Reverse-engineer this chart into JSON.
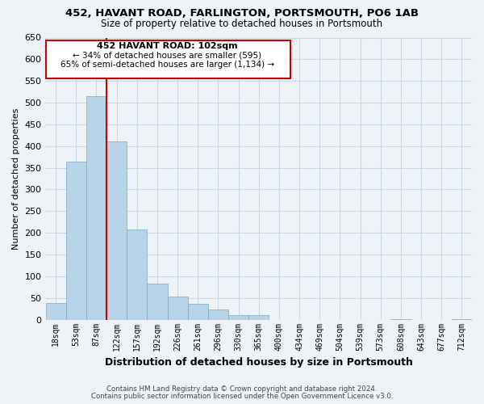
{
  "title1": "452, HAVANT ROAD, FARLINGTON, PORTSMOUTH, PO6 1AB",
  "title2": "Size of property relative to detached houses in Portsmouth",
  "xlabel": "Distribution of detached houses by size in Portsmouth",
  "ylabel": "Number of detached properties",
  "bar_labels": [
    "18sqm",
    "53sqm",
    "87sqm",
    "122sqm",
    "157sqm",
    "192sqm",
    "226sqm",
    "261sqm",
    "296sqm",
    "330sqm",
    "365sqm",
    "400sqm",
    "434sqm",
    "469sqm",
    "504sqm",
    "539sqm",
    "573sqm",
    "608sqm",
    "643sqm",
    "677sqm",
    "712sqm"
  ],
  "bar_values": [
    38,
    365,
    515,
    410,
    207,
    83,
    53,
    37,
    24,
    10,
    10,
    0,
    0,
    0,
    0,
    0,
    0,
    2,
    0,
    0,
    2
  ],
  "bar_color": "#b8d4e8",
  "bar_edge_color": "#7aaac8",
  "grid_color": "#c8d8e8",
  "background_color": "#eef3f8",
  "property_line_color": "#cc0000",
  "annotation_title": "452 HAVANT ROAD: 102sqm",
  "annotation_line1": "← 34% of detached houses are smaller (595)",
  "annotation_line2": "65% of semi-detached houses are larger (1,134) →",
  "annotation_box_color": "#ffffff",
  "annotation_box_edge": "#cc0000",
  "ylim": [
    0,
    650
  ],
  "yticks": [
    0,
    50,
    100,
    150,
    200,
    250,
    300,
    350,
    400,
    450,
    500,
    550,
    600,
    650
  ],
  "footer1": "Contains HM Land Registry data © Crown copyright and database right 2024.",
  "footer2": "Contains public sector information licensed under the Open Government Licence v3.0."
}
